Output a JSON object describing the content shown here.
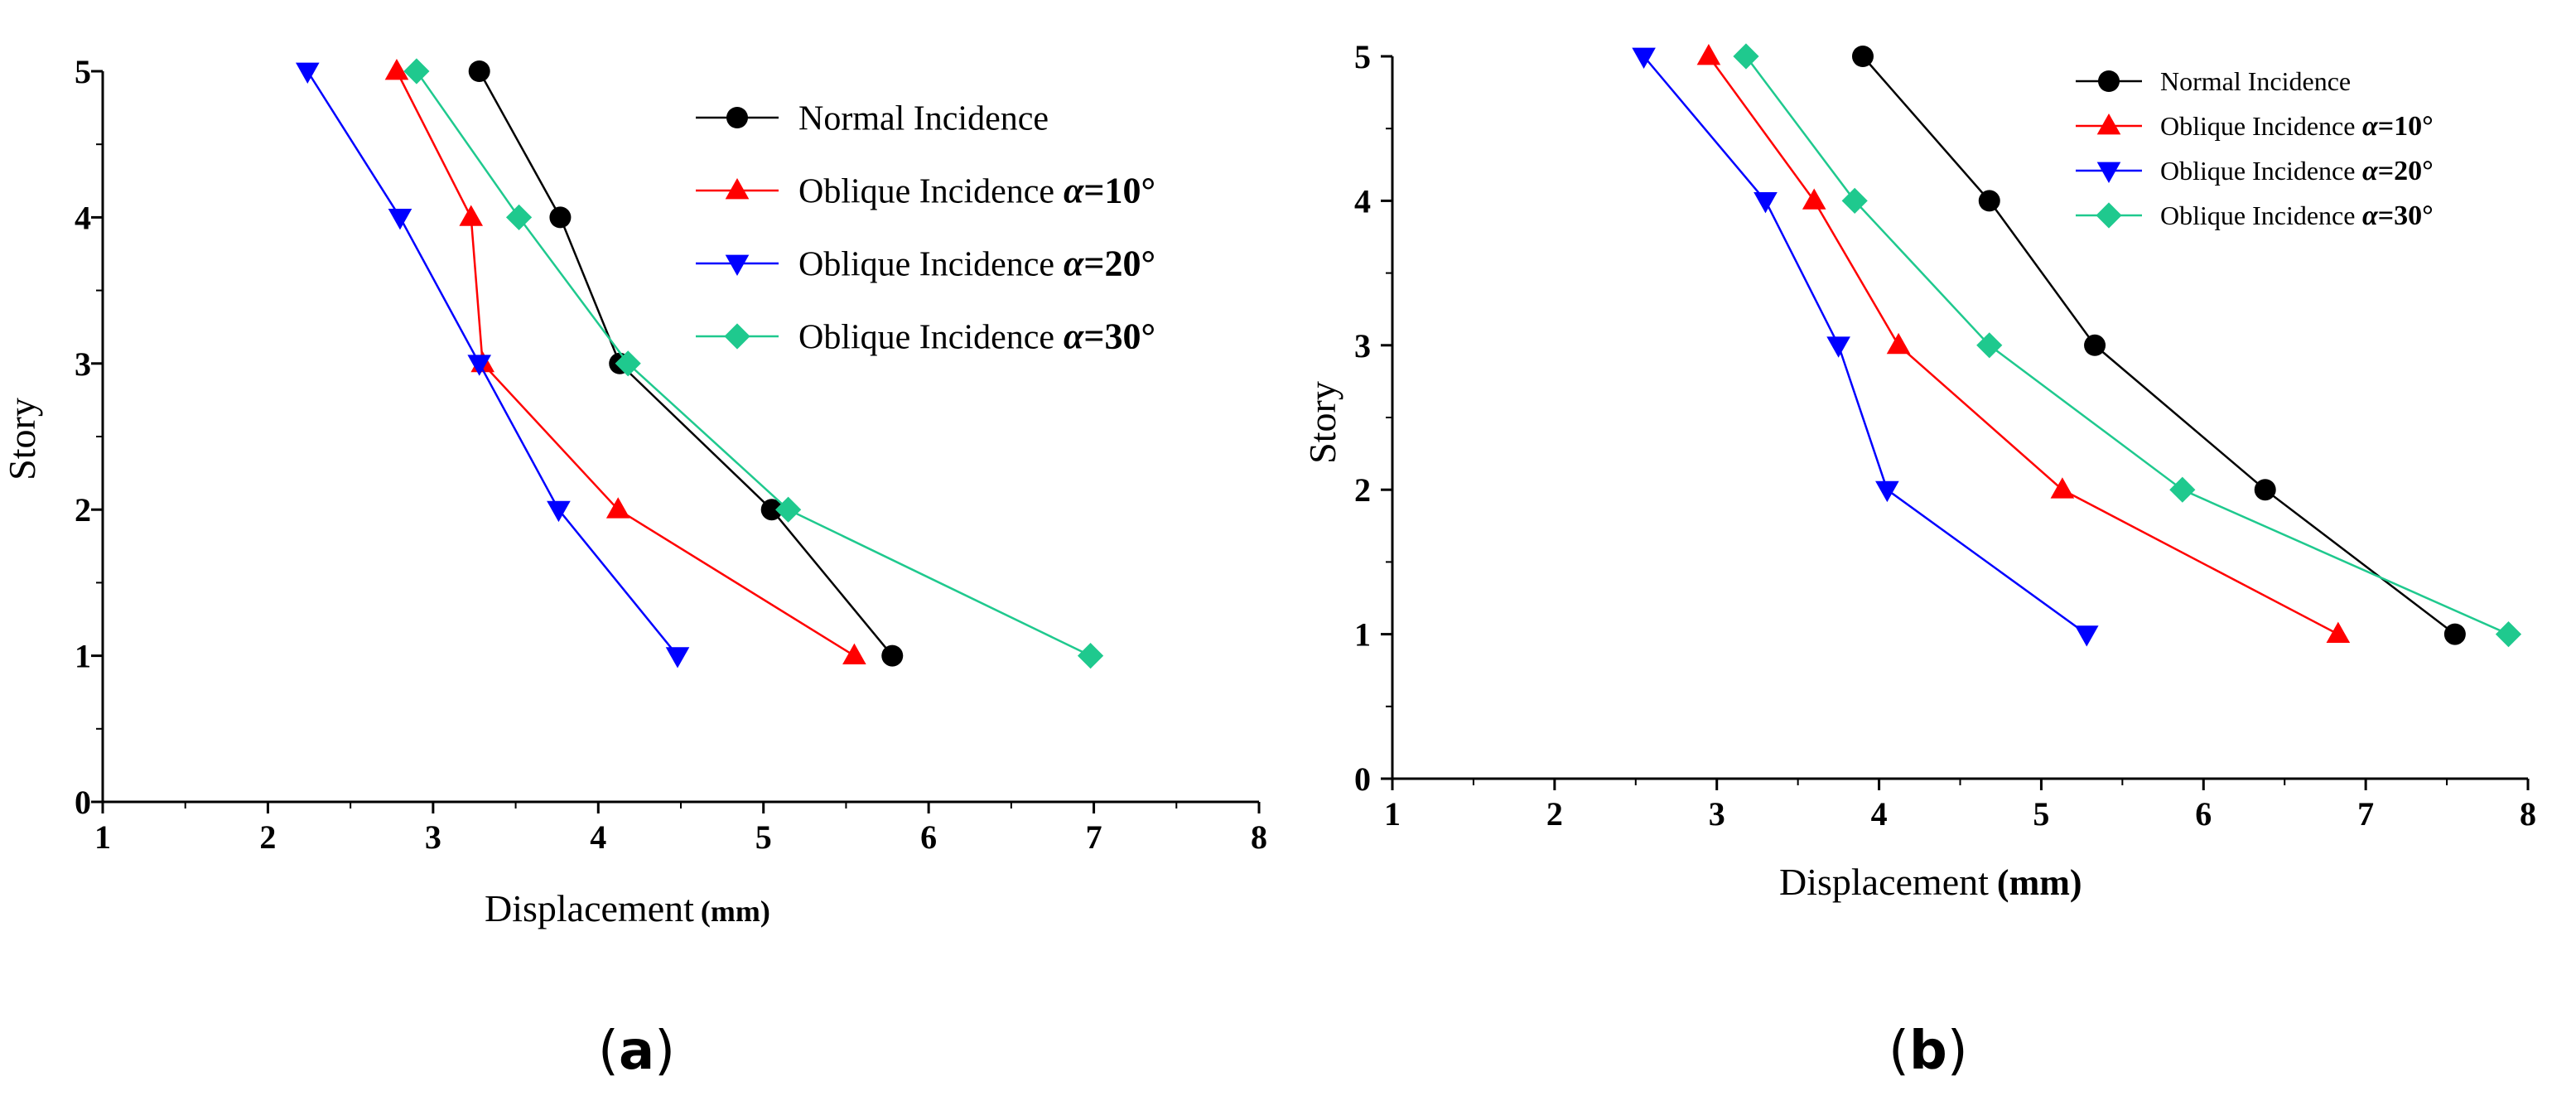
{
  "chart_data": [
    {
      "type": "line",
      "panel_label": "a",
      "xlabel": "Displacement",
      "xlabel_unit": "(mm)",
      "ylabel": "Story",
      "xlim": [
        1,
        8
      ],
      "ylim": [
        0,
        5
      ],
      "xticks": [
        1,
        2,
        3,
        4,
        5,
        6,
        7,
        8
      ],
      "yticks": [
        0,
        1,
        2,
        3,
        4,
        5
      ],
      "grid": false,
      "legend_position": "top-right",
      "series": [
        {
          "name": "Normal Incidence",
          "prefix": "Normal Incidence",
          "alpha": "",
          "color": "#000000",
          "marker": "circle",
          "points": [
            {
              "x": 5.78,
              "y": 1
            },
            {
              "x": 5.05,
              "y": 2
            },
            {
              "x": 4.13,
              "y": 3
            },
            {
              "x": 3.77,
              "y": 4
            },
            {
              "x": 3.28,
              "y": 5
            }
          ]
        },
        {
          "name": "Oblique Incidence α=10°",
          "prefix": "Oblique Incidence",
          "alpha": "10°",
          "color": "#ff0000",
          "marker": "triangle-up",
          "points": [
            {
              "x": 5.55,
              "y": 1
            },
            {
              "x": 4.12,
              "y": 2
            },
            {
              "x": 3.3,
              "y": 3
            },
            {
              "x": 3.23,
              "y": 4
            },
            {
              "x": 2.78,
              "y": 5
            }
          ]
        },
        {
          "name": "Oblique Incidence α=20°",
          "prefix": "Oblique Incidence",
          "alpha": "20°",
          "color": "#0000ff",
          "marker": "triangle-down",
          "points": [
            {
              "x": 4.48,
              "y": 1
            },
            {
              "x": 3.76,
              "y": 2
            },
            {
              "x": 3.28,
              "y": 3
            },
            {
              "x": 2.8,
              "y": 4
            },
            {
              "x": 2.24,
              "y": 5
            }
          ]
        },
        {
          "name": "Oblique Incidence α=30°",
          "prefix": "Oblique Incidence",
          "alpha": "30°",
          "color": "#1fc98e",
          "marker": "diamond",
          "points": [
            {
              "x": 6.98,
              "y": 1
            },
            {
              "x": 5.15,
              "y": 2
            },
            {
              "x": 4.18,
              "y": 3
            },
            {
              "x": 3.52,
              "y": 4
            },
            {
              "x": 2.9,
              "y": 5
            }
          ]
        }
      ]
    },
    {
      "type": "line",
      "panel_label": "b",
      "xlabel": "Displacement",
      "xlabel_unit": "(mm)",
      "ylabel": "Story",
      "xlim": [
        1,
        8
      ],
      "ylim": [
        0,
        5
      ],
      "xticks": [
        1,
        2,
        3,
        4,
        5,
        6,
        7,
        8
      ],
      "yticks": [
        0,
        1,
        2,
        3,
        4,
        5
      ],
      "grid": false,
      "legend_position": "top-right",
      "series": [
        {
          "name": "Normal Incidence",
          "prefix": "Normal Incidence",
          "alpha": "",
          "color": "#000000",
          "marker": "circle",
          "points": [
            {
              "x": 7.55,
              "y": 1
            },
            {
              "x": 6.38,
              "y": 2
            },
            {
              "x": 5.33,
              "y": 3
            },
            {
              "x": 4.68,
              "y": 4
            },
            {
              "x": 3.9,
              "y": 5
            }
          ]
        },
        {
          "name": "Oblique Incidence α=10°",
          "prefix": "Oblique Incidence",
          "alpha": "10°",
          "color": "#ff0000",
          "marker": "triangle-up",
          "points": [
            {
              "x": 6.83,
              "y": 1
            },
            {
              "x": 5.13,
              "y": 2
            },
            {
              "x": 4.12,
              "y": 3
            },
            {
              "x": 3.6,
              "y": 4
            },
            {
              "x": 2.95,
              "y": 5
            }
          ]
        },
        {
          "name": "Oblique Incidence α=20°",
          "prefix": "Oblique Incidence",
          "alpha": "20°",
          "color": "#0000ff",
          "marker": "triangle-down",
          "points": [
            {
              "x": 5.28,
              "y": 1
            },
            {
              "x": 4.05,
              "y": 2
            },
            {
              "x": 3.75,
              "y": 3
            },
            {
              "x": 3.3,
              "y": 4
            },
            {
              "x": 2.55,
              "y": 5
            }
          ]
        },
        {
          "name": "Oblique Incidence α=30°",
          "prefix": "Oblique Incidence",
          "alpha": "30°",
          "color": "#1fc98e",
          "marker": "diamond",
          "points": [
            {
              "x": 7.88,
              "y": 1
            },
            {
              "x": 5.87,
              "y": 2
            },
            {
              "x": 4.68,
              "y": 3
            },
            {
              "x": 3.85,
              "y": 4
            },
            {
              "x": 3.18,
              "y": 5
            }
          ]
        }
      ]
    }
  ]
}
